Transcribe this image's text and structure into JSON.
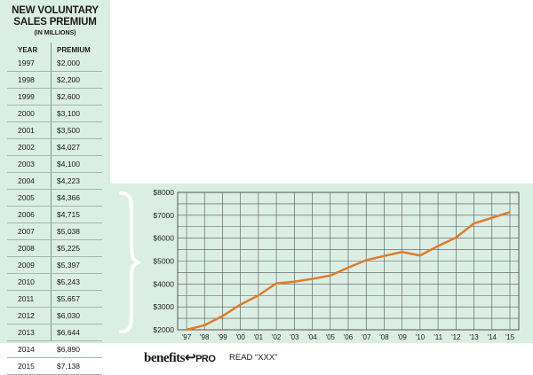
{
  "table": {
    "title_line1": "NEW VOLUNTARY",
    "title_line2": "SALES PREMIUM",
    "subtitle": "(IN MILLIONS)",
    "col_year": "YEAR",
    "col_premium": "PREMIUM",
    "rows": [
      {
        "year": "1997",
        "premium": "$2,000"
      },
      {
        "year": "1998",
        "premium": "$2,200"
      },
      {
        "year": "1999",
        "premium": "$2,600"
      },
      {
        "year": "2000",
        "premium": "$3,100"
      },
      {
        "year": "2001",
        "premium": "$3,500"
      },
      {
        "year": "2002",
        "premium": "$4,027"
      },
      {
        "year": "2003",
        "premium": "$4,100"
      },
      {
        "year": "2004",
        "premium": "$4,223"
      },
      {
        "year": "2005",
        "premium": "$4,366"
      },
      {
        "year": "2006",
        "premium": "$4,715"
      },
      {
        "year": "2007",
        "premium": "$5,038"
      },
      {
        "year": "2008",
        "premium": "$5,225"
      },
      {
        "year": "2009",
        "premium": "$5,397"
      },
      {
        "year": "2010",
        "premium": "$5,243"
      },
      {
        "year": "2011",
        "premium": "$5,657"
      },
      {
        "year": "2012",
        "premium": "$6,030"
      },
      {
        "year": "2013",
        "premium": "$6,644"
      },
      {
        "year": "2014",
        "premium": "$6,890"
      },
      {
        "year": "2015",
        "premium": "$7,138"
      }
    ]
  },
  "chart_data": {
    "type": "line",
    "x": [
      "'97",
      "'98",
      "'99",
      "'00",
      "'01",
      "'02",
      "'03",
      "'04",
      "'05",
      "'06",
      "'07",
      "'08",
      "'09",
      "'10",
      "'11",
      "'12",
      "'13",
      "'14",
      "'15"
    ],
    "series": [
      {
        "values": [
          2000,
          2200,
          2600,
          3100,
          3500,
          4027,
          4100,
          4223,
          4366,
          4715,
          5038,
          5225,
          5397,
          5243,
          5657,
          6030,
          6644,
          6890,
          7138
        ]
      }
    ],
    "y_ticks": [
      "$2000",
      "$3000",
      "$4000",
      "$5000",
      "$6000",
      "$7000",
      "$8000"
    ],
    "ylim": [
      2000,
      8000
    ],
    "grid": true,
    "line_color": "#e07b2a"
  },
  "footer": {
    "logo_main": "benefits",
    "logo_pro": "PRO",
    "read_text": "READ “XXX”"
  },
  "colors": {
    "panel_bg": "#dbeee4",
    "accent": "#e07b2a"
  }
}
